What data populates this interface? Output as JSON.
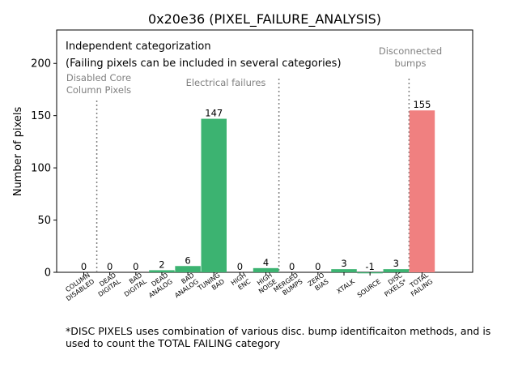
{
  "chart_data": {
    "type": "bar",
    "title": "0x20e36 (PIXEL_FAILURE_ANALYSIS)",
    "xlabel": "",
    "ylabel": "Number of pixels",
    "ylim": [
      0,
      232
    ],
    "yticks": [
      0,
      50,
      100,
      150,
      200
    ],
    "categories": [
      [
        "COLUMN",
        "DISABLED"
      ],
      [
        "DEAD",
        "DIGITAL"
      ],
      [
        "BAD",
        "DIGITAL"
      ],
      [
        "DEAD",
        "ANALOG"
      ],
      [
        "BAD",
        "ANALOG"
      ],
      [
        "TUNING",
        "BAD"
      ],
      [
        "HIGH",
        "ENC"
      ],
      [
        "HIGH",
        "NOISE"
      ],
      [
        "MERGED",
        "BUMPS"
      ],
      [
        "ZERO",
        "BIAS"
      ],
      [
        "XTALK"
      ],
      [
        "SOURCE"
      ],
      [
        "DISC",
        "PIXELS*"
      ],
      [
        "TOTAL",
        "FAILING"
      ]
    ],
    "values": [
      0,
      0,
      0,
      2,
      6,
      147,
      0,
      4,
      0,
      0,
      3,
      -1,
      3,
      155
    ],
    "bar_colors": [
      "#3cb371",
      "#3cb371",
      "#3cb371",
      "#3cb371",
      "#3cb371",
      "#3cb371",
      "#3cb371",
      "#3cb371",
      "#3cb371",
      "#3cb371",
      "#3cb371",
      "#3cb371",
      "#3cb371",
      "#f08080"
    ],
    "dividers_after_index": [
      0,
      7,
      12
    ],
    "info_lines": [
      "Independent categorization",
      "(Failing pixels can be included in several categories)"
    ],
    "section_labels": [
      [
        "Disabled Core",
        "Column Pixels"
      ],
      [
        "Electrical failures"
      ],
      [
        "Disconnected",
        "bumps"
      ]
    ],
    "footnote": "*DISC PIXELS uses combination of various disc. bump identificaiton methods, and is used to count the TOTAL FAILING category"
  }
}
